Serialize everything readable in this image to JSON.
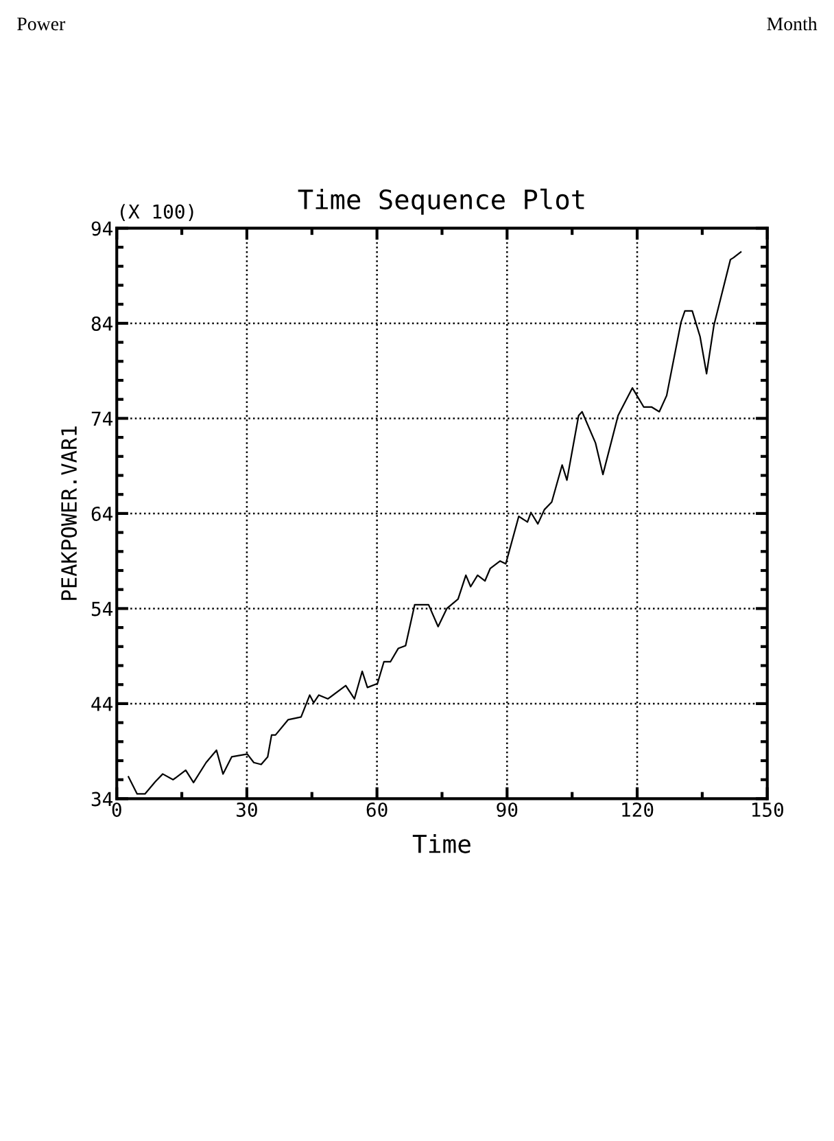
{
  "chart_data": {
    "type": "line",
    "title": "Time Sequence Plot",
    "xlabel": "Time",
    "ylabel": "PEAKPOWER.VAR1",
    "annotations": [
      "(X 100)",
      "Power",
      "Month"
    ],
    "x": [
      2.7,
      4.7,
      6.5,
      8.9,
      10.6,
      13.0,
      15.9,
      17.7,
      20.6,
      23.0,
      24.5,
      26.5,
      30.1,
      31.6,
      33.3,
      34.8,
      35.7,
      36.6,
      39.5,
      42.5,
      44.5,
      45.4,
      46.6,
      48.7,
      52.8,
      54.8,
      56.6,
      57.8,
      60.1,
      61.6,
      63.1,
      64.9,
      66.6,
      68.7,
      71.9,
      74.1,
      76.1,
      78.7,
      80.5,
      81.6,
      83.2,
      84.9,
      86.1,
      88.4,
      89.7,
      92.7,
      94.7,
      95.5,
      97.1,
      98.6,
      100.3,
      102.7,
      103.8,
      106.5,
      107.3,
      110.4,
      112.1,
      115.6,
      118.9,
      121.5,
      123.3,
      125.1,
      126.8,
      130.1,
      131.0,
      132.7,
      134.5,
      136.0,
      137.7,
      141.5,
      142.2,
      143.9
    ],
    "series": [
      {
        "color": "#000000",
        "values": [
          36.3,
          34.5,
          34.5,
          35.8,
          36.6,
          36.0,
          37.0,
          35.7,
          37.8,
          39.1,
          36.6,
          38.4,
          38.7,
          37.8,
          37.6,
          38.4,
          40.7,
          40.7,
          42.3,
          42.6,
          44.9,
          44.1,
          44.9,
          44.5,
          45.9,
          44.5,
          47.4,
          45.7,
          46.1,
          48.4,
          48.4,
          49.8,
          50.1,
          54.4,
          54.4,
          52.1,
          54.0,
          55.0,
          57.5,
          56.3,
          57.5,
          56.9,
          58.2,
          59.0,
          58.7,
          63.7,
          63.1,
          64.1,
          62.9,
          64.4,
          65.2,
          69.1,
          67.5,
          74.3,
          74.7,
          71.4,
          68.1,
          74.3,
          77.2,
          75.2,
          75.2,
          74.7,
          76.4,
          84.1,
          85.3,
          85.3,
          82.6,
          78.7,
          83.8,
          90.7,
          90.9,
          91.5
        ]
      }
    ],
    "xlim": [
      0,
      150
    ],
    "ylim": [
      34,
      94
    ],
    "xticks": [
      0,
      {
        "value": 15,
        "label": null
      },
      30,
      {
        "value": 45,
        "label": null
      },
      60,
      {
        "value": 75,
        "label": null
      },
      90,
      {
        "value": 105,
        "label": null
      },
      120,
      {
        "value": 135,
        "label": null
      },
      150
    ],
    "yticks": [
      34,
      {
        "value": 36,
        "label": null
      },
      {
        "value": 38,
        "label": null
      },
      {
        "value": 40,
        "label": null
      },
      {
        "value": 42,
        "label": null
      },
      44,
      {
        "value": 46,
        "label": null
      },
      {
        "value": 48,
        "label": null
      },
      {
        "value": 50,
        "label": null
      },
      {
        "value": 52,
        "label": null
      },
      54,
      {
        "value": 56,
        "label": null
      },
      {
        "value": 58,
        "label": null
      },
      {
        "value": 60,
        "label": null
      },
      {
        "value": 62,
        "label": null
      },
      64,
      {
        "value": 66,
        "label": null
      },
      {
        "value": 68,
        "label": null
      },
      {
        "value": 70,
        "label": null
      },
      {
        "value": 72,
        "label": null
      },
      74,
      {
        "value": 76,
        "label": null
      },
      {
        "value": 78,
        "label": null
      },
      {
        "value": 80,
        "label": null
      },
      {
        "value": 82,
        "label": null
      },
      84,
      {
        "value": 86,
        "label": null
      },
      {
        "value": 88,
        "label": null
      },
      {
        "value": 90,
        "label": null
      },
      {
        "value": 92,
        "label": null
      },
      94
    ],
    "grid": true,
    "marker": "none",
    "line_style": "solid",
    "legend": false
  }
}
